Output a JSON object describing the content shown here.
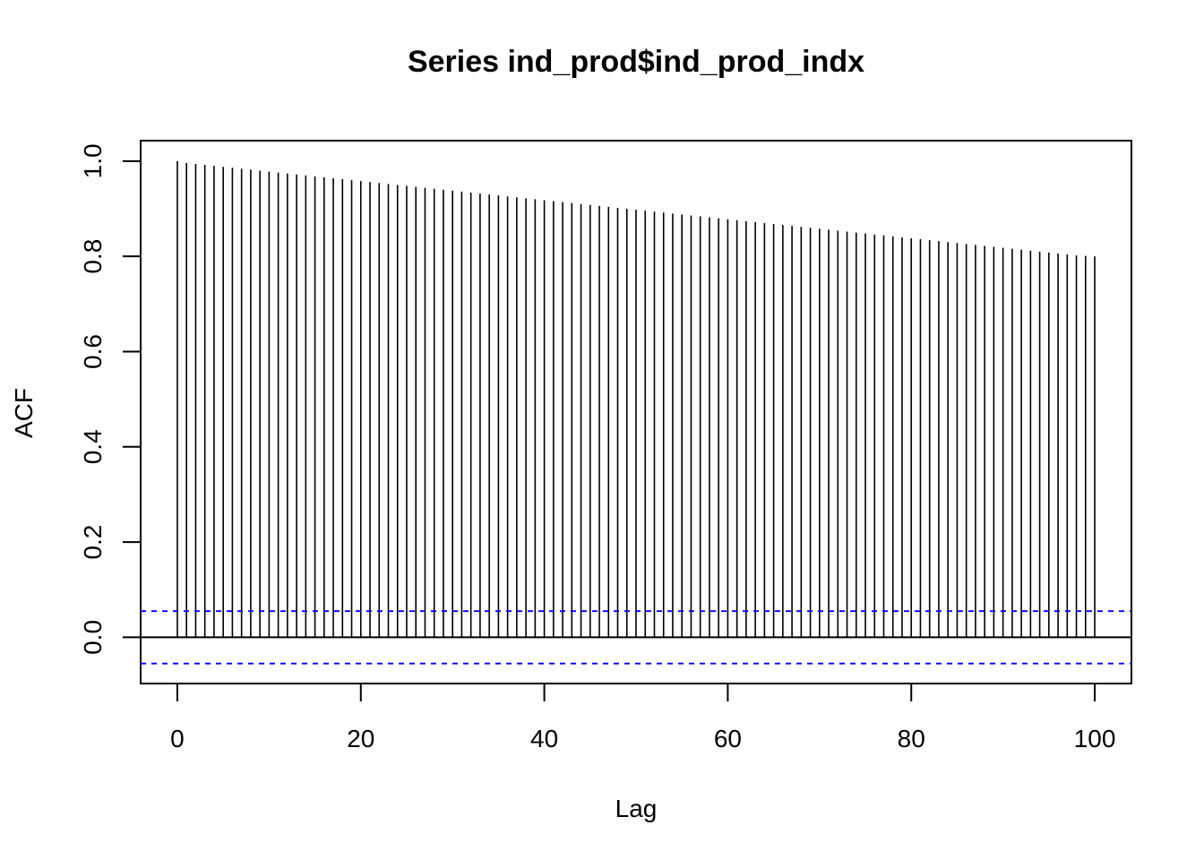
{
  "chart_data": {
    "type": "bar",
    "title": "Series  ind_prod$ind_prod_indx",
    "xlabel": "Lag",
    "ylabel": "ACF",
    "xlim": [
      -4,
      104
    ],
    "ylim": [
      -0.097,
      1.043
    ],
    "x_ticks": [
      0,
      20,
      40,
      60,
      80,
      100
    ],
    "x_tick_labels": [
      "0",
      "20",
      "40",
      "60",
      "80",
      "100"
    ],
    "y_ticks": [
      0.0,
      0.2,
      0.4,
      0.6,
      0.8,
      1.0
    ],
    "y_tick_labels": [
      "0.0",
      "0.2",
      "0.4",
      "0.6",
      "0.8",
      "1.0"
    ],
    "confidence_limit": 0.055,
    "confidence_line_color": "#0000ff",
    "bar_color": "#000000",
    "lags": [
      0,
      1,
      2,
      3,
      4,
      5,
      6,
      7,
      8,
      9,
      10,
      11,
      12,
      13,
      14,
      15,
      16,
      17,
      18,
      19,
      20,
      21,
      22,
      23,
      24,
      25,
      26,
      27,
      28,
      29,
      30,
      31,
      32,
      33,
      34,
      35,
      36,
      37,
      38,
      39,
      40,
      41,
      42,
      43,
      44,
      45,
      46,
      47,
      48,
      49,
      50,
      51,
      52,
      53,
      54,
      55,
      56,
      57,
      58,
      59,
      60,
      61,
      62,
      63,
      64,
      65,
      66,
      67,
      68,
      69,
      70,
      71,
      72,
      73,
      74,
      75,
      76,
      77,
      78,
      79,
      80,
      81,
      82,
      83,
      84,
      85,
      86,
      87,
      88,
      89,
      90,
      91,
      92,
      93,
      94,
      95,
      96,
      97,
      98,
      99,
      100
    ],
    "values": [
      1.0,
      0.996,
      0.994,
      0.992,
      0.99,
      0.988,
      0.986,
      0.984,
      0.982,
      0.98,
      0.978,
      0.976,
      0.974,
      0.972,
      0.97,
      0.968,
      0.966,
      0.964,
      0.962,
      0.96,
      0.958,
      0.956,
      0.954,
      0.952,
      0.95,
      0.948,
      0.946,
      0.944,
      0.942,
      0.94,
      0.938,
      0.936,
      0.934,
      0.932,
      0.93,
      0.928,
      0.926,
      0.924,
      0.922,
      0.92,
      0.918,
      0.916,
      0.914,
      0.912,
      0.91,
      0.908,
      0.906,
      0.904,
      0.902,
      0.9,
      0.898,
      0.896,
      0.894,
      0.892,
      0.89,
      0.888,
      0.886,
      0.884,
      0.882,
      0.88,
      0.878,
      0.876,
      0.874,
      0.872,
      0.87,
      0.868,
      0.866,
      0.864,
      0.862,
      0.86,
      0.858,
      0.856,
      0.854,
      0.852,
      0.85,
      0.848,
      0.846,
      0.844,
      0.842,
      0.84,
      0.838,
      0.836,
      0.834,
      0.832,
      0.83,
      0.828,
      0.826,
      0.824,
      0.822,
      0.82,
      0.818,
      0.816,
      0.814,
      0.812,
      0.81,
      0.808,
      0.806,
      0.804,
      0.802,
      0.801,
      0.8
    ],
    "grid": false,
    "legend": "none"
  }
}
